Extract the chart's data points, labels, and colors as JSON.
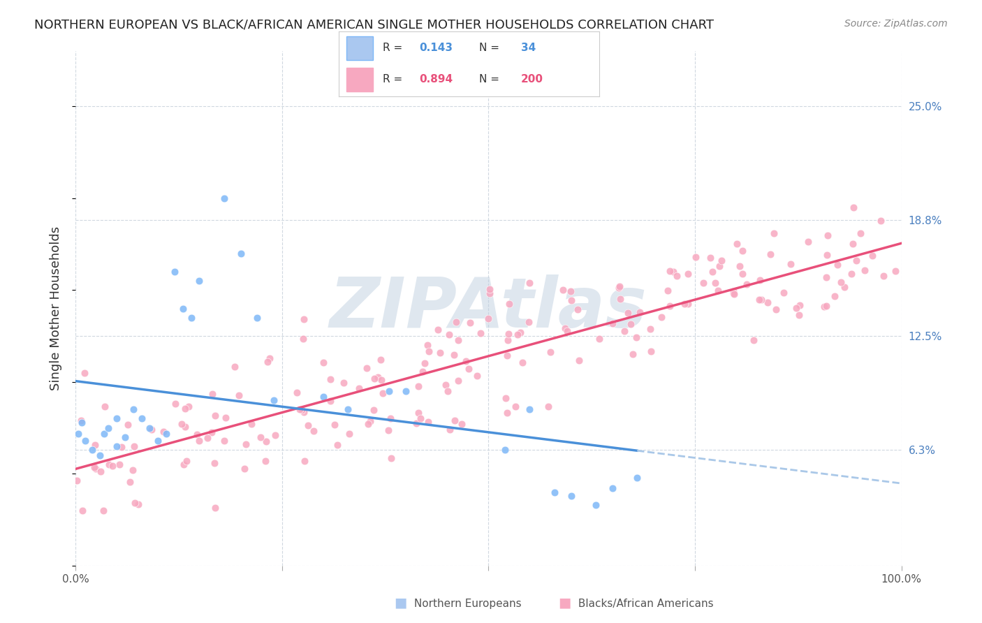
{
  "title": "NORTHERN EUROPEAN VS BLACK/AFRICAN AMERICAN SINGLE MOTHER HOUSEHOLDS CORRELATION CHART",
  "source": "Source: ZipAtlas.com",
  "ylabel": "Single Mother Households",
  "xlim": [
    0,
    1
  ],
  "ylim": [
    0,
    0.28
  ],
  "ytick_labels": [
    "6.3%",
    "12.5%",
    "18.8%",
    "25.0%"
  ],
  "ytick_values": [
    0.063,
    0.125,
    0.188,
    0.25
  ],
  "blue_scatter_color": "#7eb8f7",
  "pink_scatter_color": "#f7a8c0",
  "blue_line_color": "#4a90d9",
  "pink_line_color": "#e8507a",
  "dashed_line_color": "#aac8e8",
  "background_color": "#ffffff",
  "grid_color": "#d0d8e0",
  "watermark_text": "ZIPAtlas",
  "watermark_color": "#c0d0e0",
  "R_blue": 0.143,
  "N_blue": 34,
  "R_pink": 0.894,
  "N_pink": 200,
  "blue_seed": 42,
  "pink_seed": 7,
  "blue_x": [
    0.003,
    0.008,
    0.012,
    0.02,
    0.03,
    0.035,
    0.04,
    0.05,
    0.05,
    0.06,
    0.07,
    0.08,
    0.09,
    0.1,
    0.11,
    0.12,
    0.13,
    0.14,
    0.15,
    0.18,
    0.2,
    0.22,
    0.24,
    0.3,
    0.33,
    0.38,
    0.4,
    0.52,
    0.55,
    0.58,
    0.6,
    0.63,
    0.65,
    0.68
  ],
  "blue_y": [
    0.072,
    0.078,
    0.068,
    0.063,
    0.06,
    0.072,
    0.075,
    0.08,
    0.065,
    0.07,
    0.085,
    0.08,
    0.075,
    0.068,
    0.072,
    0.16,
    0.14,
    0.135,
    0.155,
    0.2,
    0.17,
    0.135,
    0.09,
    0.092,
    0.085,
    0.095,
    0.095,
    0.063,
    0.085,
    0.04,
    0.038,
    0.033,
    0.042,
    0.048
  ]
}
